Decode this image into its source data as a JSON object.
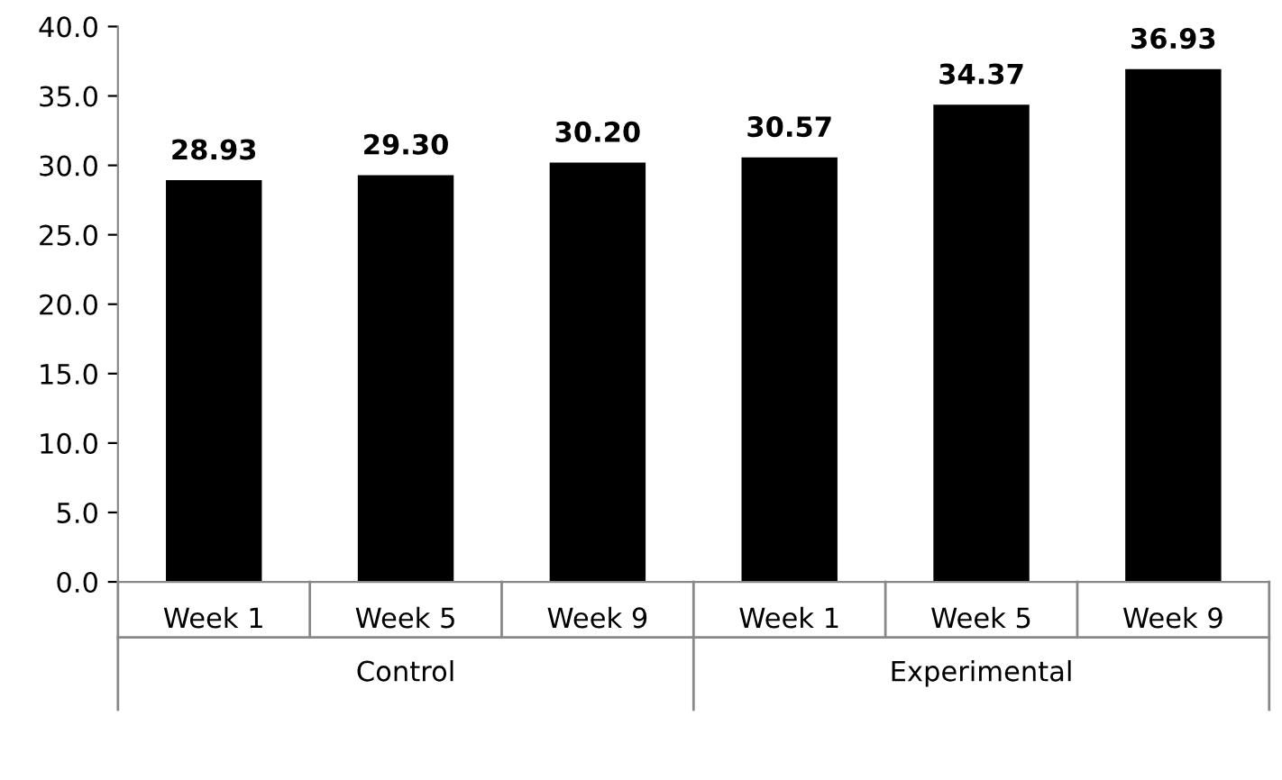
{
  "chart_data": {
    "type": "bar",
    "categories": [
      "Week 1",
      "Week 5",
      "Week 9",
      "Week 1",
      "Week 5",
      "Week 9"
    ],
    "values": [
      28.93,
      29.3,
      30.2,
      30.57,
      34.37,
      36.93
    ],
    "value_labels": [
      "28.93",
      "29.30",
      "30.20",
      "30.57",
      "34.37",
      "36.93"
    ],
    "color": "#000000",
    "ylim": [
      0,
      40
    ],
    "yticks": [
      {
        "value": 0,
        "label": "0.0"
      },
      {
        "value": 5,
        "label": "5.0"
      },
      {
        "value": 10,
        "label": "10.0"
      },
      {
        "value": 15,
        "label": "15.0"
      },
      {
        "value": 20,
        "label": "20.0"
      },
      {
        "value": 25,
        "label": "25.0"
      },
      {
        "value": 30,
        "label": "30.0"
      },
      {
        "value": 35,
        "label": "35.0"
      },
      {
        "value": 40,
        "label": "40.0"
      }
    ],
    "annotations": [
      "Control",
      "Experimental"
    ],
    "grid": false,
    "legend": false
  }
}
